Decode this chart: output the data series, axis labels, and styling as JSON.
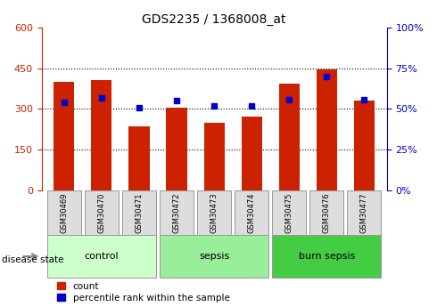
{
  "title": "GDS2235 / 1368008_at",
  "samples": [
    "GSM30469",
    "GSM30470",
    "GSM30471",
    "GSM30472",
    "GSM30473",
    "GSM30474",
    "GSM30475",
    "GSM30476",
    "GSM30477"
  ],
  "counts": [
    400,
    405,
    235,
    305,
    248,
    272,
    395,
    445,
    330
  ],
  "percentiles": [
    54,
    57,
    51,
    55,
    52,
    52,
    56,
    70,
    56
  ],
  "groups": [
    {
      "label": "control",
      "indices": [
        0,
        1,
        2
      ],
      "color": "#ccffcc"
    },
    {
      "label": "sepsis",
      "indices": [
        3,
        4,
        5
      ],
      "color": "#99ee99"
    },
    {
      "label": "burn sepsis",
      "indices": [
        6,
        7,
        8
      ],
      "color": "#44cc44"
    }
  ],
  "bar_color": "#cc2200",
  "dot_color": "#0000cc",
  "left_ylim": [
    0,
    600
  ],
  "left_yticks": [
    0,
    150,
    300,
    450,
    600
  ],
  "right_ylim": [
    0,
    100
  ],
  "right_yticks": [
    0,
    25,
    50,
    75,
    100
  ],
  "legend_labels": [
    "count",
    "percentile rank within the sample"
  ],
  "bar_width": 0.55,
  "disease_state_label": "disease state"
}
